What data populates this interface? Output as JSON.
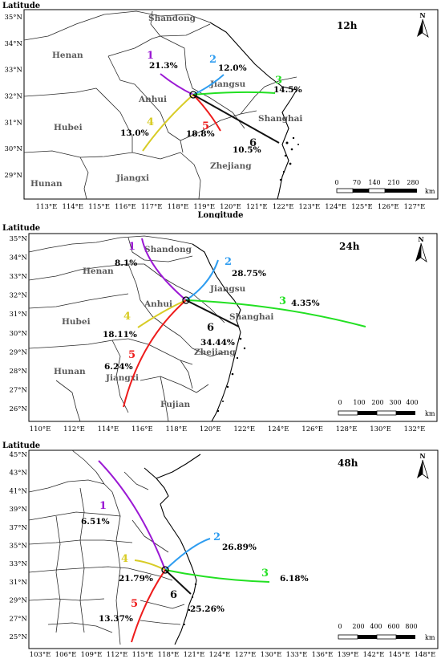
{
  "colors": {
    "r1": "#9b19d4",
    "r2": "#2f9df0",
    "r3": "#22e022",
    "r4": "#d8cc26",
    "r5": "#ee1c1c",
    "r6": "#111111"
  },
  "north_label": "N",
  "panels": [
    {
      "title": "12h",
      "y_axis_label": "Latitude",
      "x_axis_label": "Longitude",
      "lon_ticks": [
        "113°E",
        "114°E",
        "115°E",
        "116°E",
        "117°E",
        "118°E",
        "119°E",
        "120°E",
        "121°E",
        "122°E",
        "123°E",
        "124°E",
        "125°E",
        "126°E",
        "127°E"
      ],
      "lat_ticks": [
        "35°N",
        "34°N",
        "33°N",
        "32°N",
        "31°N",
        "30°N",
        "29°N"
      ],
      "provinces": [
        "Shandong",
        "Henan",
        "Jiangsu",
        "Anhui",
        "Shanghai",
        "Hubei",
        "Zhejiang",
        "Hunan",
        "Jiangxi"
      ],
      "routes": [
        {
          "id": "1",
          "percent": "21.3%"
        },
        {
          "id": "2",
          "percent": "12.0%"
        },
        {
          "id": "3",
          "percent": "14.5%"
        },
        {
          "id": "4",
          "percent": "13.0%"
        },
        {
          "id": "5",
          "percent": "18.8%"
        },
        {
          "id": "6",
          "percent": "10.5%"
        }
      ],
      "scale_ticks": [
        "0",
        "70",
        "140",
        "210",
        "280"
      ],
      "scale_unit": "km"
    },
    {
      "title": "24h",
      "y_axis_label": "Latitude",
      "x_axis_label": "",
      "lon_ticks": [
        "110°E",
        "112°E",
        "114°E",
        "116°E",
        "118°E",
        "120°E",
        "122°E",
        "124°E",
        "126°E",
        "128°E",
        "130°E",
        "132°E"
      ],
      "lat_ticks": [
        "35°N",
        "34°N",
        "33°N",
        "32°N",
        "31°N",
        "30°N",
        "29°N",
        "28°N",
        "27°N",
        "26°N"
      ],
      "provinces": [
        "Shandong",
        "Henan",
        "Jiangsu",
        "Anhui",
        "Shanghai",
        "Hubei",
        "Zhejiang",
        "Hunan",
        "Jiangxi",
        "Fujian"
      ],
      "routes": [
        {
          "id": "1",
          "percent": "8.1%"
        },
        {
          "id": "2",
          "percent": "28.75%"
        },
        {
          "id": "3",
          "percent": "4.35%"
        },
        {
          "id": "4",
          "percent": "18.11%"
        },
        {
          "id": "5",
          "percent": "6.24%"
        },
        {
          "id": "6",
          "percent": "34.44%"
        }
      ],
      "scale_ticks": [
        "0",
        "100",
        "200",
        "300",
        "400"
      ],
      "scale_unit": "km"
    },
    {
      "title": "48h",
      "y_axis_label": "Latitude",
      "x_axis_label": "",
      "lon_ticks": [
        "103°E",
        "106°E",
        "109°E",
        "112°E",
        "115°E",
        "118°E",
        "121°E",
        "124°E",
        "127°E",
        "130°E",
        "133°E",
        "136°E",
        "139°E",
        "142°E",
        "145°E",
        "148°E"
      ],
      "lat_ticks": [
        "45°N",
        "43°N",
        "41°N",
        "39°N",
        "37°N",
        "35°N",
        "33°N",
        "31°N",
        "29°N",
        "27°N",
        "25°N"
      ],
      "provinces": [],
      "routes": [
        {
          "id": "1",
          "percent": "6.51%"
        },
        {
          "id": "2",
          "percent": "26.89%"
        },
        {
          "id": "3",
          "percent": "6.18%"
        },
        {
          "id": "4",
          "percent": "21.79%"
        },
        {
          "id": "5",
          "percent": "13.37%"
        },
        {
          "id": "6",
          "percent": "25.26%"
        }
      ],
      "scale_ticks": [
        "0",
        "200",
        "400",
        "600",
        "800"
      ],
      "scale_unit": "km"
    }
  ]
}
